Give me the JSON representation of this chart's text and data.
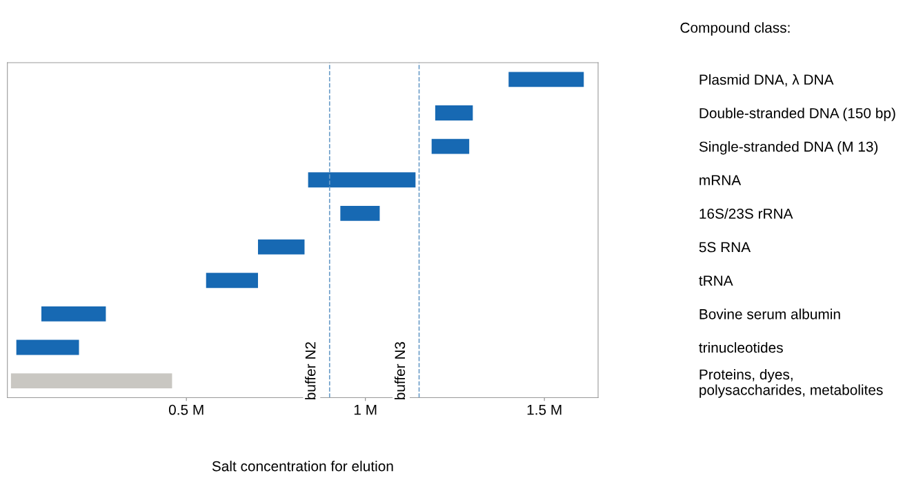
{
  "chart_data": {
    "type": "bar",
    "orientation": "horizontal",
    "xlabel": "Salt concentration for elution",
    "ylabel": "Compound class:",
    "categories": [
      "Plasmid DNA, λ DNA",
      "Double-stranded DNA (150 bp)",
      "Single-stranded DNA (M 13)",
      "mRNA",
      "16S/23S rRNA",
      "5S RNA",
      "tRNA",
      "Bovine serum albumin",
      "trinucleotides",
      "Proteins, dyes,\npolysaccharides, metabolites"
    ],
    "base": [
      1.4,
      1.195,
      1.185,
      0.84,
      0.93,
      0.7,
      0.555,
      0.095,
      0.025,
      0.01
    ],
    "values": [
      0.21,
      0.105,
      0.105,
      0.3,
      0.11,
      0.13,
      0.145,
      0.18,
      0.175,
      0.45
    ],
    "colors": [
      "#1769b3",
      "#1769b3",
      "#1769b3",
      "#1769b3",
      "#1769b3",
      "#1769b3",
      "#1769b3",
      "#1769b3",
      "#1769b3",
      "#c9c7c2"
    ],
    "xlim": [
      0,
      1.65
    ],
    "xticks": [
      {
        "value": 0.5,
        "label": "0.5 M"
      },
      {
        "value": 1,
        "label": "1 M"
      },
      {
        "value": 1.5,
        "label": "1.5 M"
      }
    ],
    "ref_lines": [
      {
        "axis": "x",
        "value": 0.9,
        "label": "buffer N2",
        "color": "#6a9cc8",
        "line_style": "dashed"
      },
      {
        "axis": "x",
        "value": 1.15,
        "label": "buffer N3",
        "color": "#6a9cc8",
        "line_style": "dashed"
      }
    ],
    "grid": false
  }
}
